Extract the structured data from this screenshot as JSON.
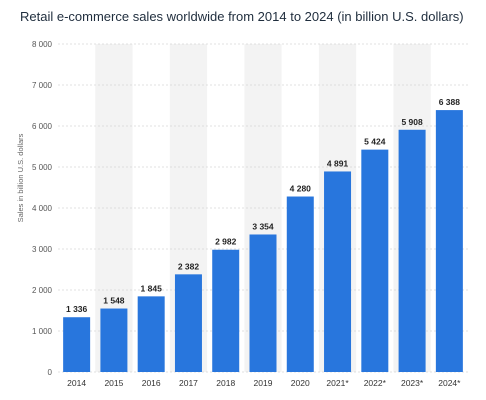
{
  "title": "Retail e-commerce sales worldwide from 2014 to 2024 (in billion U.S. dollars)",
  "chart_data": {
    "type": "bar",
    "title": "Retail e-commerce sales worldwide from 2014 to 2024 (in billion U.S. dollars)",
    "xlabel": "",
    "ylabel": "Sales in billion U.S. dollars",
    "categories": [
      "2014",
      "2015",
      "2016",
      "2017",
      "2018",
      "2019",
      "2020",
      "2021*",
      "2022*",
      "2023*",
      "2024*"
    ],
    "values": [
      1336,
      1548,
      1845,
      2382,
      2982,
      3354,
      4280,
      4891,
      5424,
      5908,
      6388
    ],
    "value_labels": [
      "1 336",
      "1 548",
      "1 845",
      "2 382",
      "2 982",
      "3 354",
      "4 280",
      "4 891",
      "5 424",
      "5 908",
      "6 388"
    ],
    "ylim": [
      0,
      8000
    ],
    "yticks": [
      0,
      1000,
      2000,
      3000,
      4000,
      5000,
      6000,
      7000,
      8000
    ],
    "ytick_labels": [
      "0",
      "1 000",
      "2 000",
      "3 000",
      "4 000",
      "5 000",
      "6 000",
      "7 000",
      "8 000"
    ],
    "grid": true,
    "bar_color": "#2876dd",
    "alt_band_color": "#f3f3f3"
  }
}
